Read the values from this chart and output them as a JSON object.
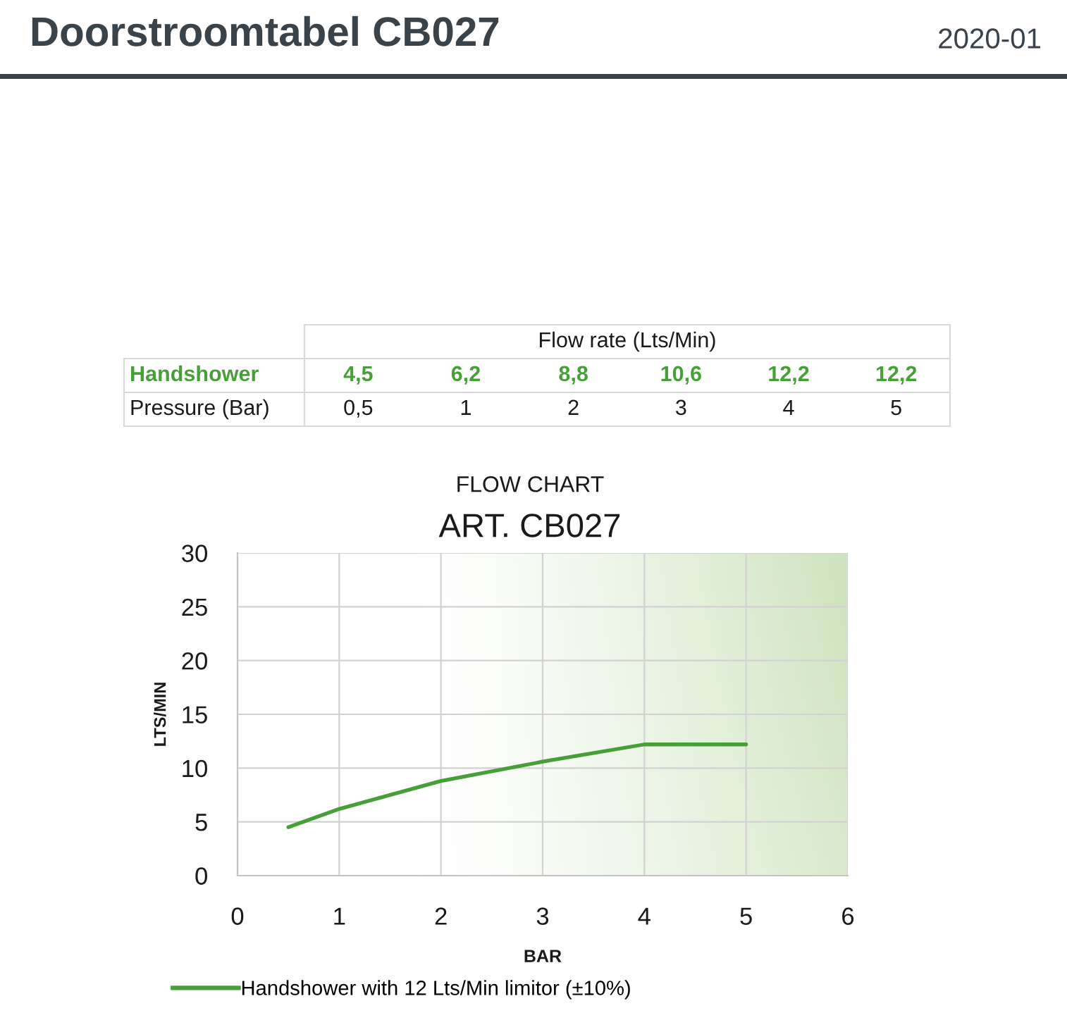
{
  "chart_data": {
    "type": "line",
    "title": "Doorstroomtabel CB027",
    "subtitle": "FLOW CHART",
    "xlabel": "BAR",
    "ylabel": "LTS/MIN",
    "annotations": [
      "ART. CB027",
      "2020-01",
      "Flow rate (Lts/Min)",
      "Handshower",
      "4,5",
      "6,2",
      "8,8",
      "10,6",
      "12,2",
      "12,2",
      "Pressure (Bar)",
      "0,5",
      "1",
      "2",
      "3",
      "4",
      "5"
    ],
    "x": [
      0.5,
      1,
      2,
      3,
      4,
      5
    ],
    "series": [
      {
        "name": "Handshower with 12 Lts/Min limitor (±10%)",
        "color": "#46a037",
        "values": [
          4.5,
          6.2,
          8.8,
          10.6,
          12.2,
          12.2
        ]
      }
    ],
    "xlim": [
      0,
      6
    ],
    "ylim": [
      0,
      30
    ],
    "xticks": [
      0,
      1,
      2,
      3,
      4,
      5,
      6
    ],
    "yticks": [
      0,
      5,
      10,
      15,
      20,
      25,
      30
    ],
    "grid": true,
    "legend": "bottom",
    "marker": "none",
    "line_style": "solid"
  }
}
